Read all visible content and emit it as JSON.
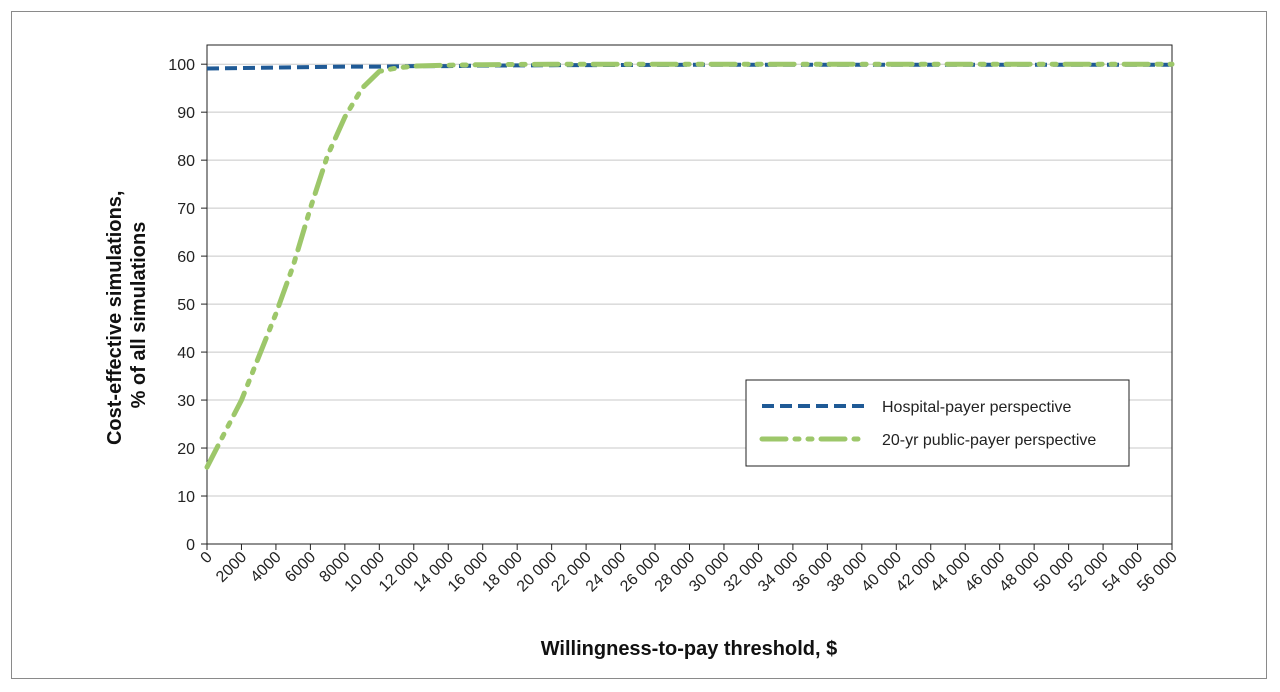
{
  "chart_data": {
    "type": "line",
    "title": "",
    "xlabel": "Willingness-to-pay threshold, $",
    "ylabel_lines": [
      "Cost-effective simulations,",
      "% of all simulations"
    ],
    "xlim": [
      0,
      56000
    ],
    "ylim": [
      0,
      104
    ],
    "x_ticks": [
      0,
      2000,
      4000,
      6000,
      8000,
      10000,
      12000,
      14000,
      16000,
      18000,
      20000,
      22000,
      24000,
      26000,
      28000,
      30000,
      32000,
      34000,
      36000,
      38000,
      40000,
      42000,
      44000,
      46000,
      48000,
      50000,
      52000,
      54000,
      56000
    ],
    "x_tick_labels": [
      "0",
      "2000",
      "4000",
      "6000",
      "8000",
      "10 000",
      "12 000",
      "14 000",
      "16 000",
      "18 000",
      "20 000",
      "22 000",
      "24 000",
      "26 000",
      "28 000",
      "30 000",
      "32 000",
      "34 000",
      "36 000",
      "38 000",
      "40 000",
      "42 000",
      "44 000",
      "46 000",
      "48 000",
      "50 000",
      "52 000",
      "54 000",
      "56 000"
    ],
    "y_ticks": [
      0,
      10,
      20,
      30,
      40,
      50,
      60,
      70,
      80,
      90,
      100
    ],
    "y_tick_labels": [
      "0",
      "10",
      "20",
      "30",
      "40",
      "50",
      "60",
      "70",
      "80",
      "90",
      "100"
    ],
    "grid": "horizontal",
    "legend_position": "lower-right",
    "series": [
      {
        "name": "Hospital-payer perspective",
        "color": "#1f5a96",
        "style": "dashed",
        "x": [
          0,
          2000,
          4000,
          6000,
          8000,
          10000,
          12000,
          14000,
          16000,
          20000,
          30000,
          40000,
          56000
        ],
        "y": [
          99.1,
          99.2,
          99.3,
          99.4,
          99.5,
          99.5,
          99.6,
          99.6,
          99.7,
          99.8,
          99.9,
          99.9,
          99.9
        ]
      },
      {
        "name": "20-yr public-payer perspective",
        "color": "#9dc76a",
        "style": "dash-dot-dot",
        "x": [
          0,
          1000,
          2000,
          3000,
          4000,
          5000,
          6000,
          7000,
          8000,
          9000,
          10000,
          11000,
          12000,
          14000,
          16000,
          20000,
          30000,
          40000,
          56000
        ],
        "y": [
          16,
          23,
          30,
          39,
          48,
          58,
          70,
          81,
          89,
          95,
          98.5,
          99.2,
          99.6,
          99.8,
          99.9,
          100,
          100,
          100,
          100
        ]
      }
    ]
  }
}
